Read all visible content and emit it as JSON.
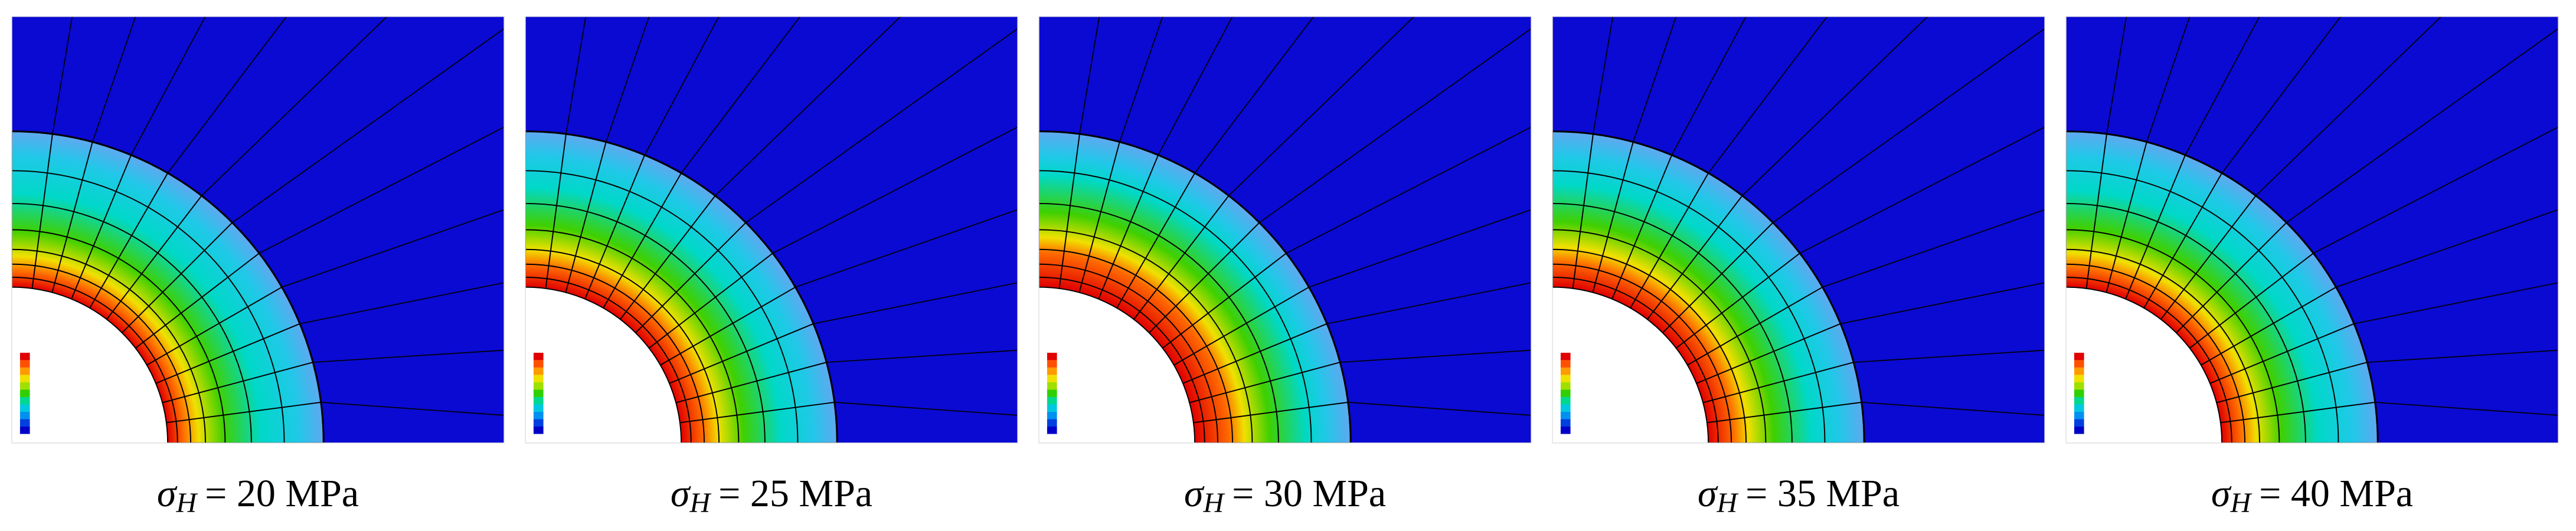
{
  "panels": [
    {
      "caption": {
        "symbol": "σ",
        "subscript": "H",
        "rest": "= 20 MPa"
      }
    },
    {
      "caption": {
        "symbol": "σ",
        "subscript": "H",
        "rest": "= 25 MPa"
      }
    },
    {
      "caption": {
        "symbol": "σ",
        "subscript": "H",
        "rest": "= 30 MPa"
      }
    },
    {
      "caption": {
        "symbol": "σ",
        "subscript": "H",
        "rest": "= 35 MPa"
      }
    },
    {
      "caption": {
        "symbol": "σ",
        "subscript": "H",
        "rest": "= 40 MPa"
      }
    }
  ]
}
